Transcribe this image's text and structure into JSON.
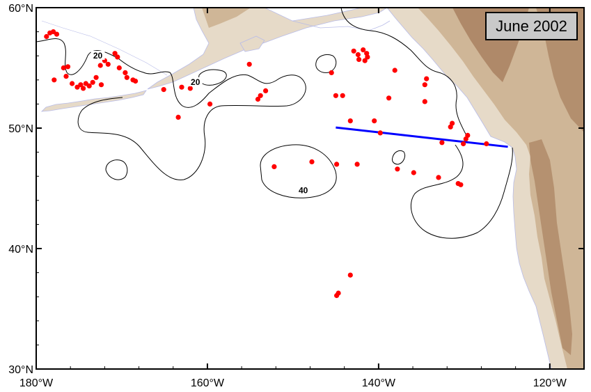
{
  "map": {
    "date_label": "June 2002",
    "lon_range": [
      -180,
      -116
    ],
    "lat_range": [
      30,
      60
    ],
    "lat_ticks": [
      {
        "value": 60,
        "label": "60°N"
      },
      {
        "value": 50,
        "label": "50°N"
      },
      {
        "value": 40,
        "label": "40°N"
      },
      {
        "value": 30,
        "label": "30°N"
      }
    ],
    "lon_ticks": [
      {
        "value": -180,
        "label": "180°W"
      },
      {
        "value": -160,
        "label": "160°W"
      },
      {
        "value": -140,
        "label": "140°W"
      },
      {
        "value": -120,
        "label": "120°W"
      }
    ],
    "contour_labels": [
      {
        "text": "20",
        "lon": -172.8,
        "lat": 55.9
      },
      {
        "text": "20",
        "lon": -161.4,
        "lat": 53.7
      },
      {
        "text": "40",
        "lon": -148.8,
        "lat": 44.7
      }
    ],
    "transect": {
      "color": "#0000ff",
      "start": [
        -145.0,
        50.05
      ],
      "end": [
        -124.9,
        48.45
      ]
    },
    "colors": {
      "station": "#ff0000",
      "contour": "#000000",
      "coast": "#b8bce8",
      "land_light": "#e6dac8",
      "land_mid": "#cfb697",
      "land_dark": "#a98160"
    },
    "stations": [
      [
        -178.4,
        57.9
      ],
      [
        -178.0,
        58.0
      ],
      [
        -177.6,
        57.8
      ],
      [
        -178.8,
        57.6
      ],
      [
        -177.9,
        54.0
      ],
      [
        -176.8,
        55.0
      ],
      [
        -176.3,
        55.1
      ],
      [
        -176.5,
        54.3
      ],
      [
        -175.8,
        53.7
      ],
      [
        -175.2,
        53.4
      ],
      [
        -174.8,
        53.6
      ],
      [
        -174.5,
        53.3
      ],
      [
        -174.2,
        53.7
      ],
      [
        -173.8,
        53.5
      ],
      [
        -173.4,
        53.8
      ],
      [
        -173.0,
        54.2
      ],
      [
        -172.4,
        53.6
      ],
      [
        -172.5,
        55.2
      ],
      [
        -172.0,
        55.6
      ],
      [
        -171.6,
        55.3
      ],
      [
        -170.8,
        56.2
      ],
      [
        -170.5,
        55.9
      ],
      [
        -170.3,
        55.0
      ],
      [
        -169.6,
        54.6
      ],
      [
        -169.4,
        54.2
      ],
      [
        -168.7,
        54.0
      ],
      [
        -168.4,
        53.9
      ],
      [
        -165.1,
        53.2
      ],
      [
        -163.0,
        53.4
      ],
      [
        -162.0,
        53.3
      ],
      [
        -163.4,
        50.9
      ],
      [
        -159.7,
        52.0
      ],
      [
        -155.1,
        55.3
      ],
      [
        -154.1,
        52.4
      ],
      [
        -153.8,
        52.7
      ],
      [
        -153.2,
        53.1
      ],
      [
        -152.2,
        46.8
      ],
      [
        -147.8,
        47.2
      ],
      [
        -144.9,
        47.0
      ],
      [
        -145.5,
        54.6
      ],
      [
        -145.0,
        52.7
      ],
      [
        -144.2,
        52.7
      ],
      [
        -143.3,
        50.6
      ],
      [
        -142.5,
        47.0
      ],
      [
        -142.9,
        56.4
      ],
      [
        -142.4,
        56.1
      ],
      [
        -141.8,
        56.5
      ],
      [
        -141.4,
        56.2
      ],
      [
        -142.3,
        55.7
      ],
      [
        -141.6,
        55.6
      ],
      [
        -141.3,
        55.9
      ],
      [
        -140.5,
        50.6
      ],
      [
        -139.8,
        49.6
      ],
      [
        -138.8,
        52.5
      ],
      [
        -138.1,
        54.8
      ],
      [
        -137.8,
        46.6
      ],
      [
        -135.9,
        46.3
      ],
      [
        -134.6,
        53.6
      ],
      [
        -134.4,
        54.1
      ],
      [
        -134.6,
        52.2
      ],
      [
        -133.0,
        45.9
      ],
      [
        -132.6,
        48.8
      ],
      [
        -131.6,
        50.1
      ],
      [
        -131.4,
        50.4
      ],
      [
        -130.7,
        45.4
      ],
      [
        -130.4,
        45.3
      ],
      [
        -129.8,
        49.1
      ],
      [
        -129.6,
        49.4
      ],
      [
        -130.1,
        48.7
      ],
      [
        -127.4,
        48.7
      ],
      [
        -144.9,
        36.1
      ],
      [
        -144.7,
        36.3
      ],
      [
        -143.3,
        37.8
      ]
    ]
  }
}
